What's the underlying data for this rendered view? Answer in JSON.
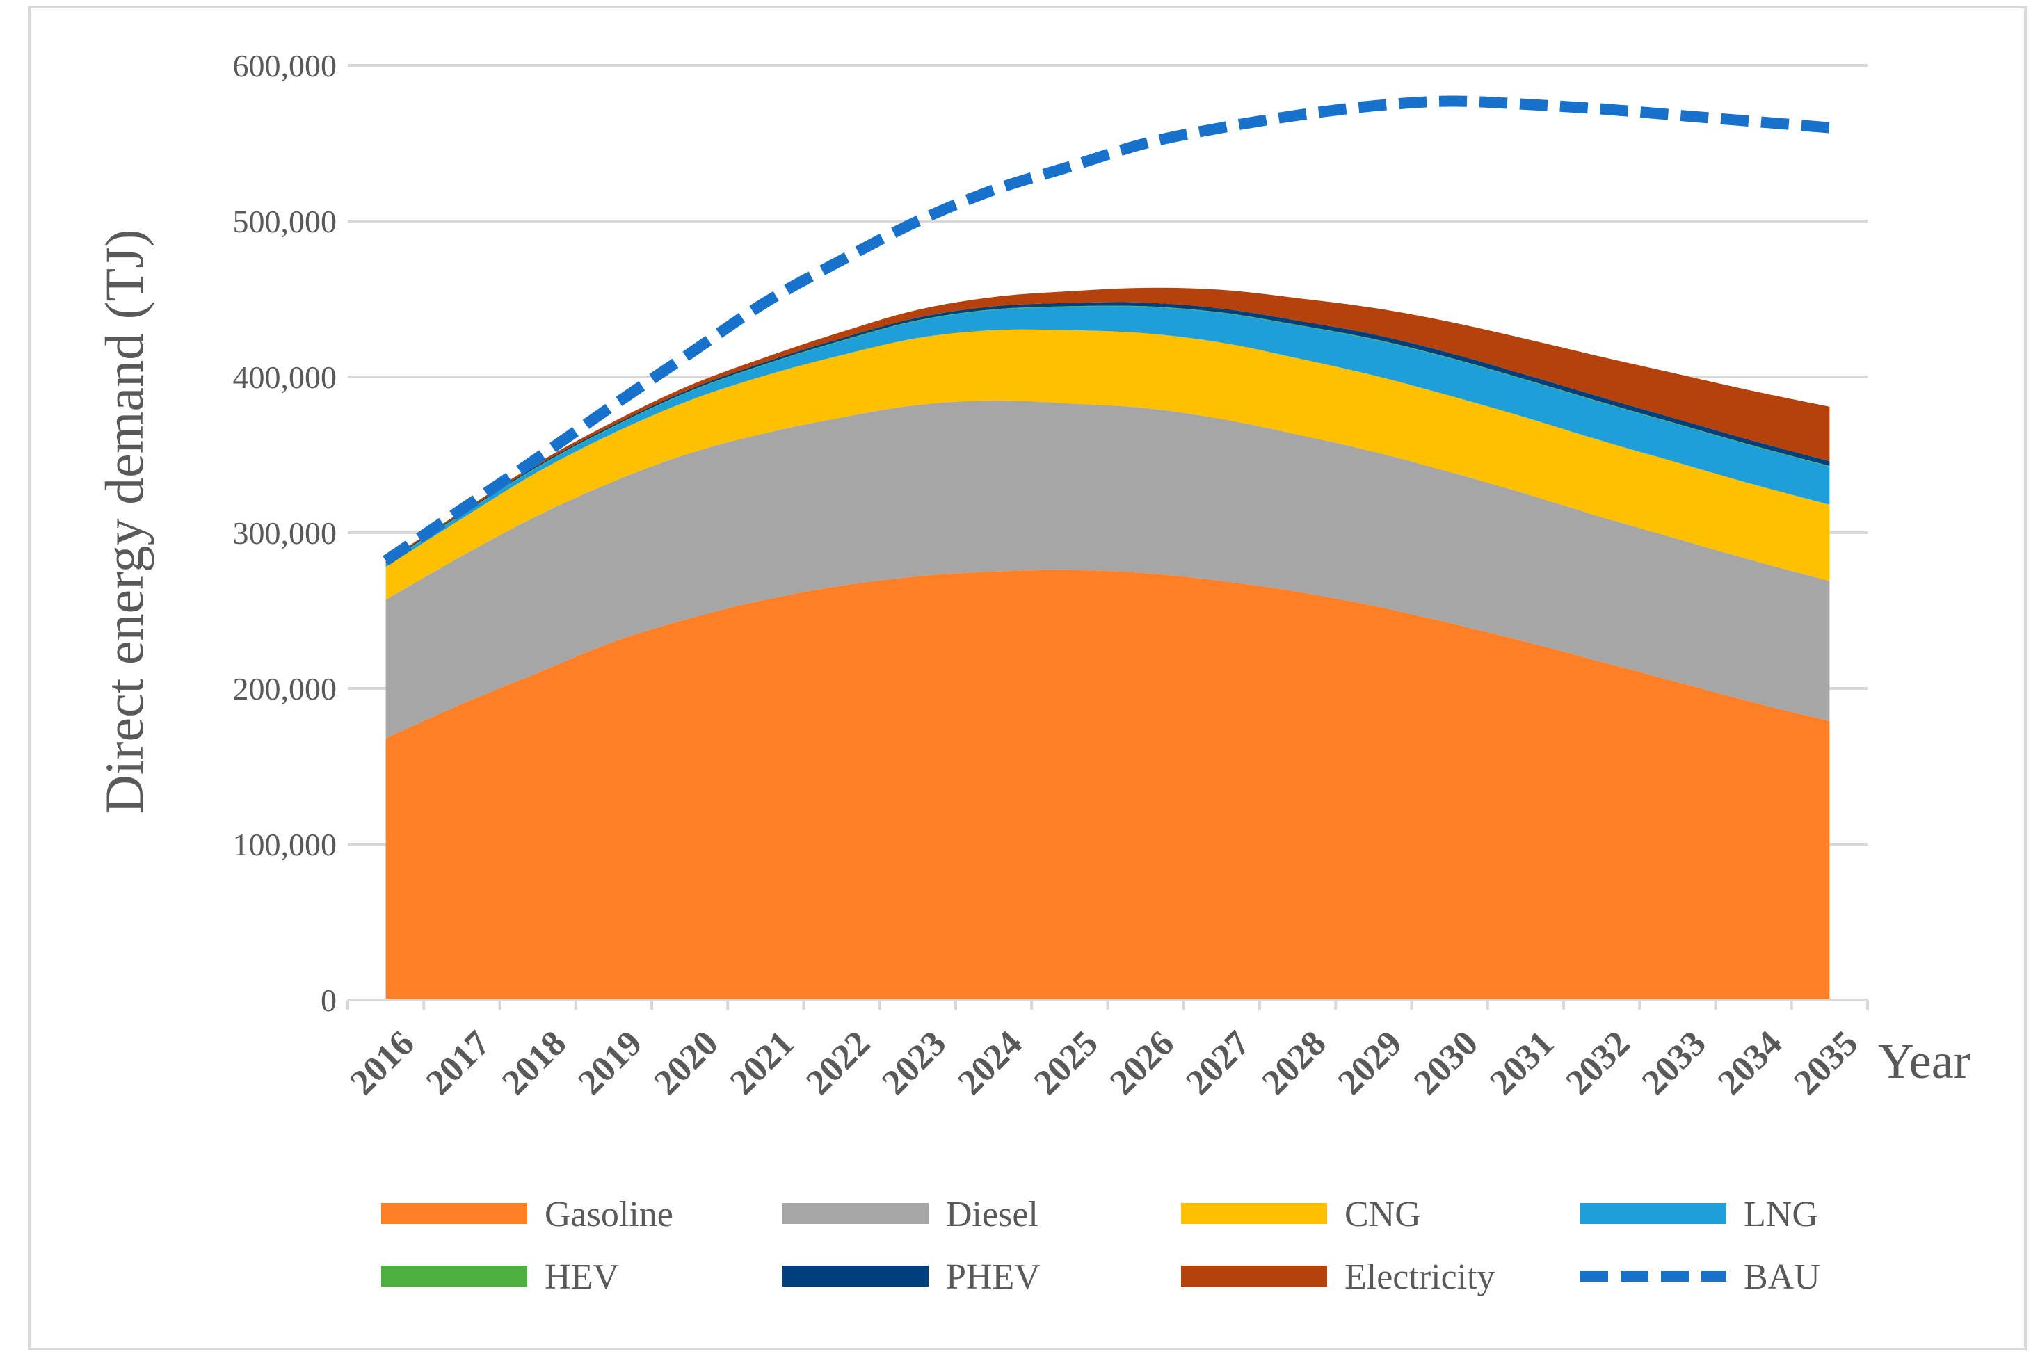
{
  "chart_data": {
    "type": "area",
    "stacked": true,
    "title": "",
    "xlabel": "Year",
    "ylabel": "Direct energy demand (TJ)",
    "ylim": [
      0,
      600000
    ],
    "ytick_values": [
      0,
      100000,
      200000,
      300000,
      400000,
      500000,
      600000
    ],
    "ytick_labels": [
      "0",
      "100,000",
      "200,000",
      "300,000",
      "400,000",
      "500,000",
      "600,000"
    ],
    "grid": "horizontal",
    "legend_placement": "bottom",
    "categories": [
      "2016",
      "2017",
      "2018",
      "2019",
      "2020",
      "2021",
      "2022",
      "2023",
      "2024",
      "2025",
      "2026",
      "2027",
      "2028",
      "2029",
      "2030",
      "2031",
      "2032",
      "2033",
      "2034",
      "2035"
    ],
    "series": [
      {
        "name": "Gasoline",
        "color": "#FF7F27",
        "values": [
          168000,
          190000,
          210000,
          230000,
          245000,
          257000,
          266000,
          272000,
          275000,
          276000,
          274000,
          269000,
          262000,
          253000,
          242000,
          230000,
          217000,
          204000,
          191000,
          179000
        ]
      },
      {
        "name": "Diesel",
        "color": "#A6A6A6",
        "values": [
          89000,
          95000,
          101000,
          103000,
          106000,
          107000,
          108000,
          110000,
          110000,
          107000,
          106000,
          104000,
          101000,
          99000,
          97000,
          95000,
          93000,
          92000,
          91000,
          90000
        ]
      },
      {
        "name": "CNG",
        "color": "#FFC000",
        "values": [
          21000,
          24000,
          28000,
          31000,
          34000,
          37000,
          40000,
          43000,
          45000,
          47000,
          48000,
          49000,
          49000,
          49000,
          49000,
          49000,
          49000,
          49000,
          49000,
          49000
        ]
      },
      {
        "name": "LNG",
        "color": "#1F9FDA",
        "values": [
          2000,
          2500,
          3000,
          4000,
          5500,
          7000,
          9000,
          11000,
          13000,
          15000,
          17000,
          19000,
          21000,
          23000,
          24000,
          24000,
          24500,
          24500,
          24500,
          24500
        ]
      },
      {
        "name": "HEV",
        "color": "#4CAF3F",
        "values": [
          400,
          400,
          400,
          400,
          400,
          400,
          400,
          400,
          400,
          400,
          400,
          400,
          400,
          400,
          400,
          400,
          400,
          400,
          400,
          400
        ]
      },
      {
        "name": "PHEV",
        "color": "#003F7D",
        "values": [
          800,
          800,
          900,
          1000,
          1200,
          1300,
          1500,
          1700,
          1900,
          2100,
          2300,
          2500,
          2700,
          2900,
          3000,
          3000,
          3000,
          3000,
          3000,
          3000
        ]
      },
      {
        "name": "Electricity",
        "color": "#B5420B",
        "values": [
          500,
          1000,
          1500,
          2000,
          2500,
          3000,
          4000,
          5000,
          6000,
          7500,
          9500,
          12000,
          14500,
          17000,
          20000,
          23000,
          26000,
          29000,
          32000,
          35000
        ]
      }
    ],
    "line_series": [
      {
        "name": "BAU",
        "color": "#1872CC",
        "style": "dashed",
        "values": [
          282000,
          315000,
          348000,
          382000,
          415000,
          448000,
          475000,
          500000,
          520000,
          535000,
          550000,
          560000,
          568000,
          574000,
          577000,
          575000,
          572000,
          568000,
          564000,
          560000
        ]
      }
    ]
  }
}
